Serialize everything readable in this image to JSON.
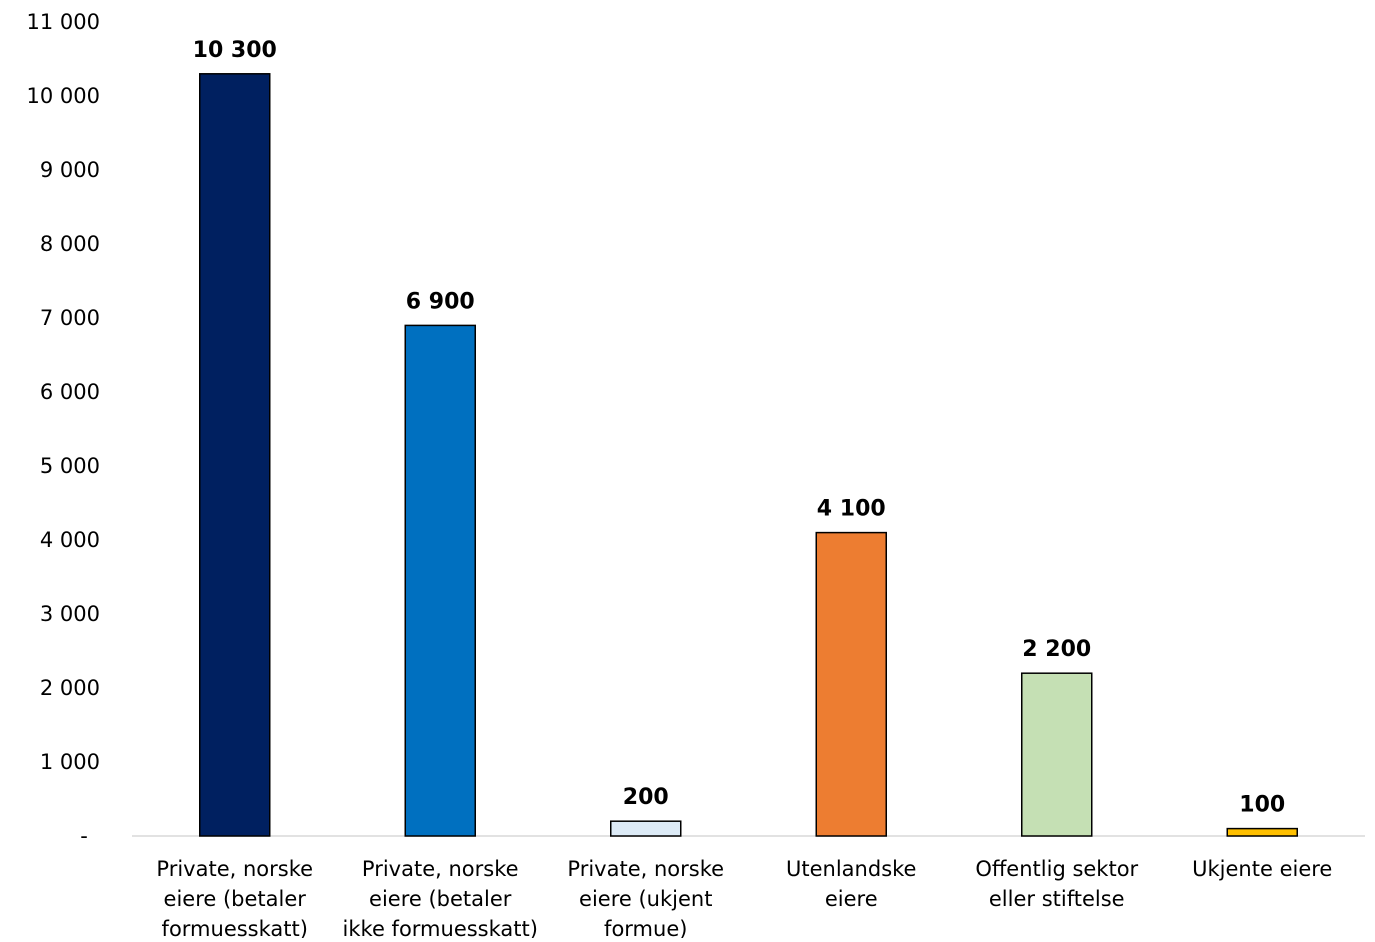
{
  "chart_data": {
    "type": "bar",
    "categories": [
      [
        "Private, norske",
        "eiere (betaler",
        "formuesskatt)"
      ],
      [
        "Private, norske",
        "eiere (betaler",
        "ikke formuesskatt)"
      ],
      [
        "Private, norske",
        "eiere (ukjent",
        "formue)"
      ],
      [
        "Utenlandske",
        "eiere"
      ],
      [
        "Offentlig sektor",
        "eller stiftelse"
      ],
      [
        "Ukjente eiere"
      ]
    ],
    "values": [
      10300,
      6900,
      200,
      4100,
      2200,
      100
    ],
    "data_labels": [
      "10 300",
      "6 900",
      "200",
      "4 100",
      "2 200",
      "100"
    ],
    "colors": [
      "#002060",
      "#0070C0",
      "#DDEBF7",
      "#ED7D31",
      "#C5E0B4",
      "#FFC000"
    ],
    "ylim": [
      0,
      11000
    ],
    "y_ticks": [
      {
        "value": 0,
        "label": "-"
      },
      {
        "value": 1000,
        "label": "1 000"
      },
      {
        "value": 2000,
        "label": "2 000"
      },
      {
        "value": 3000,
        "label": "3 000"
      },
      {
        "value": 4000,
        "label": "4 000"
      },
      {
        "value": 5000,
        "label": "5 000"
      },
      {
        "value": 6000,
        "label": "6 000"
      },
      {
        "value": 7000,
        "label": "7 000"
      },
      {
        "value": 8000,
        "label": "8 000"
      },
      {
        "value": 9000,
        "label": "9 000"
      },
      {
        "value": 10000,
        "label": "10 000"
      },
      {
        "value": 11000,
        "label": "11 000"
      }
    ],
    "grid": false,
    "legend": "none",
    "title": "",
    "xlabel": "",
    "ylabel": ""
  }
}
